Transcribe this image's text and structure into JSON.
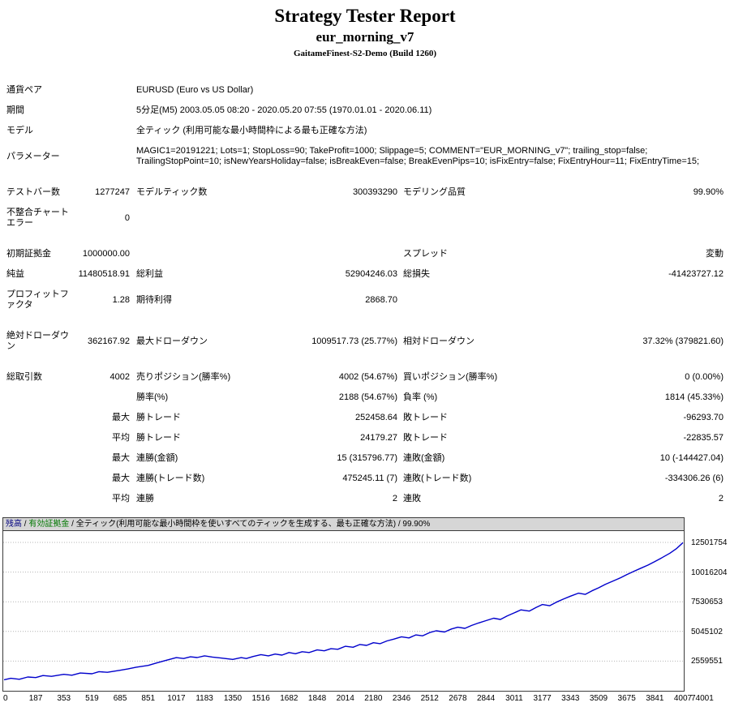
{
  "header": {
    "title": "Strategy Tester Report",
    "subtitle": "eur_morning_v7",
    "build": "GaitameFinest-S2-Demo (Build 1260)"
  },
  "report": {
    "rows": [
      {
        "type": "wide",
        "label": "通貨ペア",
        "value": "EURUSD (Euro vs US Dollar)"
      },
      {
        "type": "wide",
        "label": "期間",
        "value": "5分足(M5) 2003.05.05 08:20 - 2020.05.20 07:55 (1970.01.01 - 2020.06.11)"
      },
      {
        "type": "wide",
        "label": "モデル",
        "value": "全ティック (利用可能な最小時間枠による最も正確な方法)"
      },
      {
        "type": "wide",
        "label": "パラメーター",
        "value": "MAGIC1=20191221; Lots=1; StopLoss=90; TakeProfit=1000; Slippage=5; COMMENT=\"EUR_MORNING_v7\"; trailing_stop=false; TrailingStopPoint=10; isNewYearsHoliday=false; isBreakEven=false; BreakEvenPips=10; isFixEntry=false; FixEntryHour=11; FixEntryTime=15;"
      },
      {
        "type": "spacer"
      },
      {
        "type": "stat",
        "c1": "テストバー数",
        "c2": "1277247",
        "c3": "モデルティック数",
        "c4": "300393290",
        "c5": "モデリング品質",
        "c6": "99.90%"
      },
      {
        "type": "stat",
        "c1": "不整合チャートエラー",
        "c2": "0",
        "c3": "",
        "c4": "",
        "c5": "",
        "c6": ""
      },
      {
        "type": "spacer"
      },
      {
        "type": "stat",
        "c1": "初期証拠金",
        "c2": "1000000.00",
        "c3": "",
        "c4": "",
        "c5": "スプレッド",
        "c6": "変動"
      },
      {
        "type": "stat",
        "c1": "純益",
        "c2": "11480518.91",
        "c3": "総利益",
        "c4": "52904246.03",
        "c5": "総損失",
        "c6": "-41423727.12"
      },
      {
        "type": "stat",
        "c1": "プロフィットファクタ",
        "c2": "1.28",
        "c3": "期待利得",
        "c4": "2868.70",
        "c5": "",
        "c6": ""
      },
      {
        "type": "spacer"
      },
      {
        "type": "stat",
        "c1": "絶対ドローダウン",
        "c2": "362167.92",
        "c3": "最大ドローダウン",
        "c4": "1009517.73 (25.77%)",
        "c5": "相対ドローダウン",
        "c6": "37.32% (379821.60)"
      },
      {
        "type": "spacer"
      },
      {
        "type": "stat",
        "c1": "総取引数",
        "c2": "4002",
        "c3": "売りポジション(勝率%)",
        "c4": "4002 (54.67%)",
        "c5": "買いポジション(勝率%)",
        "c6": "0 (0.00%)"
      },
      {
        "type": "stat",
        "c1": "",
        "c2": "",
        "c3": "勝率(%)",
        "c4": "2188 (54.67%)",
        "c5": "負率 (%)",
        "c6": "1814 (45.33%)"
      },
      {
        "type": "stat",
        "c1": "",
        "c2": "最大",
        "c3": "勝トレード",
        "c4": "252458.64",
        "c5": "敗トレード",
        "c6": "-96293.70"
      },
      {
        "type": "stat",
        "c1": "",
        "c2": "平均",
        "c3": "勝トレード",
        "c4": "24179.27",
        "c5": "敗トレード",
        "c6": "-22835.57"
      },
      {
        "type": "stat",
        "c1": "",
        "c2": "最大",
        "c3": "連勝(金額)",
        "c4": "15 (315796.77)",
        "c5": "連敗(金額)",
        "c6": "10 (-144427.04)"
      },
      {
        "type": "stat",
        "c1": "",
        "c2": "最大",
        "c3": "連勝(トレード数)",
        "c4": "475245.11 (7)",
        "c5": "連敗(トレード数)",
        "c6": "-334306.26 (6)"
      },
      {
        "type": "stat",
        "c1": "",
        "c2": "平均",
        "c3": "連勝",
        "c4": "2",
        "c5": "連敗",
        "c6": "2"
      }
    ]
  },
  "chart": {
    "legend_balance": "残高",
    "legend_equity": "有効証拠金",
    "sep": " / ",
    "model_note": "全ティック(利用可能な最小時間枠を使いすべてのティックを生成する、最も正確な方法)",
    "quality": "99.90%",
    "legend_balance_color": "#000080",
    "legend_equity_color": "#007800"
  },
  "chart_data": {
    "type": "line",
    "xlim": [
      0,
      4007
    ],
    "ylim": [
      74001,
      12501754
    ],
    "x_ticks": [
      0,
      187,
      353,
      519,
      685,
      851,
      1017,
      1183,
      1350,
      1516,
      1682,
      1848,
      2014,
      2180,
      2346,
      2512,
      2678,
      2844,
      3011,
      3177,
      3343,
      3509,
      3675,
      3841,
      4007
    ],
    "y_ticks": [
      74001,
      2559551,
      5045102,
      7530653,
      10016204,
      12501754
    ],
    "grid": "horizontal-dotted",
    "gridline_color": "#b4b4b4",
    "series": [
      {
        "id": "balance-line",
        "name": "残高",
        "color": "#0000cc",
        "x": [
          0,
          40,
          90,
          140,
          187,
          230,
          280,
          353,
          400,
          450,
          519,
          560,
          610,
          685,
          730,
          780,
          851,
          900,
          950,
          1017,
          1060,
          1100,
          1140,
          1183,
          1230,
          1280,
          1350,
          1400,
          1430,
          1470,
          1516,
          1560,
          1600,
          1640,
          1682,
          1720,
          1760,
          1800,
          1848,
          1890,
          1930,
          1970,
          2014,
          2060,
          2100,
          2140,
          2180,
          2220,
          2260,
          2300,
          2346,
          2390,
          2430,
          2470,
          2512,
          2550,
          2600,
          2640,
          2678,
          2720,
          2760,
          2800,
          2844,
          2890,
          2930,
          2970,
          3011,
          3050,
          3100,
          3140,
          3177,
          3220,
          3260,
          3300,
          3343,
          3390,
          3430,
          3470,
          3509,
          3550,
          3600,
          3640,
          3675,
          3720,
          3760,
          3800,
          3841,
          3880,
          3930,
          3970,
          4007
        ],
        "values": [
          1000000,
          1120000,
          1040000,
          1230000,
          1180000,
          1350000,
          1280000,
          1450000,
          1380000,
          1560000,
          1500000,
          1680000,
          1620000,
          1790000,
          1900000,
          2050000,
          2200000,
          2400000,
          2600000,
          2850000,
          2780000,
          2920000,
          2860000,
          3000000,
          2900000,
          2820000,
          2700000,
          2850000,
          2780000,
          2950000,
          3100000,
          3000000,
          3150000,
          3060000,
          3280000,
          3180000,
          3350000,
          3280000,
          3500000,
          3420000,
          3600000,
          3550000,
          3800000,
          3720000,
          3950000,
          3880000,
          4100000,
          4020000,
          4250000,
          4400000,
          4600000,
          4500000,
          4750000,
          4680000,
          4950000,
          5100000,
          5000000,
          5250000,
          5400000,
          5300000,
          5550000,
          5750000,
          5950000,
          6150000,
          6050000,
          6350000,
          6600000,
          6850000,
          6750000,
          7050000,
          7300000,
          7200000,
          7500000,
          7750000,
          8000000,
          8250000,
          8150000,
          8450000,
          8700000,
          9000000,
          9300000,
          9550000,
          9800000,
          10100000,
          10350000,
          10600000,
          10900000,
          11200000,
          11600000,
          12000000,
          12480519
        ]
      }
    ]
  }
}
